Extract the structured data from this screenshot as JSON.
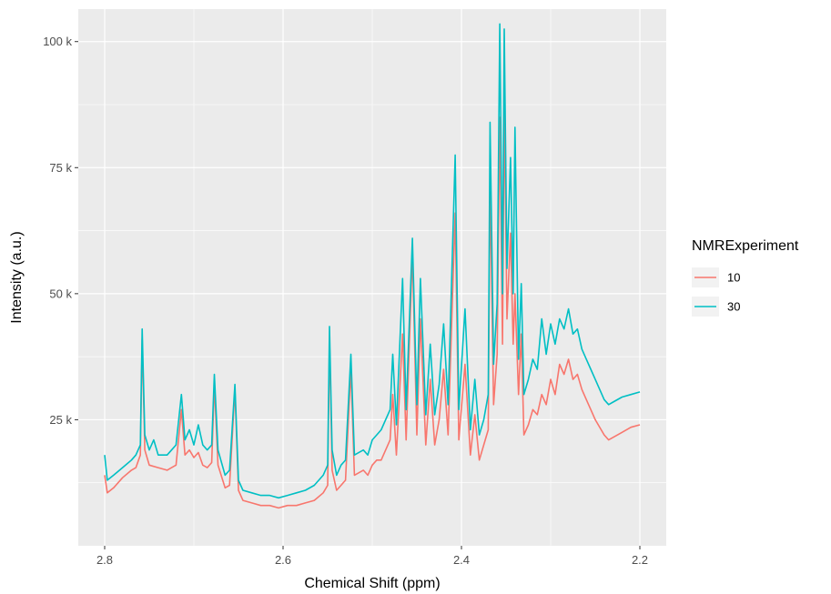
{
  "chart_data": {
    "type": "line",
    "title": "",
    "xlabel": "Chemical Shift (ppm)",
    "ylabel": "Intensity (a.u.)",
    "x_reversed": true,
    "xlim": [
      2.8,
      2.2
    ],
    "ylim": [
      0,
      105000
    ],
    "grid": true,
    "x_ticks": [
      2.8,
      2.6,
      2.4,
      2.2
    ],
    "x_tick_labels": [
      "2.8",
      "2.6",
      "2.4",
      "2.2"
    ],
    "y_ticks": [
      25000,
      50000,
      75000,
      100000
    ],
    "y_tick_labels": [
      "25 k",
      "50 k",
      "75 k",
      "100 k"
    ],
    "legend": {
      "title": "NMRExperiment",
      "placement": "right"
    },
    "series": [
      {
        "name": "10",
        "color": "#F8766D",
        "points": [
          [
            2.8,
            14000
          ],
          [
            2.797,
            10500
          ],
          [
            2.79,
            11500
          ],
          [
            2.78,
            13500
          ],
          [
            2.77,
            15000
          ],
          [
            2.765,
            15500
          ],
          [
            2.76,
            18000
          ],
          [
            2.758,
            41000
          ],
          [
            2.755,
            19000
          ],
          [
            2.75,
            16000
          ],
          [
            2.74,
            15500
          ],
          [
            2.73,
            15000
          ],
          [
            2.725,
            15500
          ],
          [
            2.72,
            16000
          ],
          [
            2.714,
            27000
          ],
          [
            2.71,
            18000
          ],
          [
            2.705,
            19000
          ],
          [
            2.7,
            17500
          ],
          [
            2.695,
            18500
          ],
          [
            2.69,
            16000
          ],
          [
            2.685,
            15500
          ],
          [
            2.68,
            16500
          ],
          [
            2.677,
            32000
          ],
          [
            2.673,
            16000
          ],
          [
            2.665,
            11500
          ],
          [
            2.66,
            12000
          ],
          [
            2.654,
            31000
          ],
          [
            2.65,
            11000
          ],
          [
            2.645,
            9000
          ],
          [
            2.635,
            8500
          ],
          [
            2.625,
            8000
          ],
          [
            2.615,
            8000
          ],
          [
            2.605,
            7500
          ],
          [
            2.595,
            8000
          ],
          [
            2.585,
            8000
          ],
          [
            2.575,
            8500
          ],
          [
            2.565,
            9000
          ],
          [
            2.555,
            10500
          ],
          [
            2.55,
            12000
          ],
          [
            2.548,
            41000
          ],
          [
            2.545,
            15000
          ],
          [
            2.54,
            11000
          ],
          [
            2.535,
            12000
          ],
          [
            2.53,
            13000
          ],
          [
            2.524,
            35000
          ],
          [
            2.52,
            14000
          ],
          [
            2.51,
            15000
          ],
          [
            2.505,
            14000
          ],
          [
            2.5,
            16000
          ],
          [
            2.495,
            17000
          ],
          [
            2.49,
            17000
          ],
          [
            2.48,
            21000
          ],
          [
            2.477,
            30000
          ],
          [
            2.473,
            18000
          ],
          [
            2.466,
            42000
          ],
          [
            2.462,
            21000
          ],
          [
            2.455,
            58000
          ],
          [
            2.45,
            22000
          ],
          [
            2.446,
            45000
          ],
          [
            2.44,
            20000
          ],
          [
            2.435,
            33000
          ],
          [
            2.43,
            20000
          ],
          [
            2.425,
            25000
          ],
          [
            2.42,
            35000
          ],
          [
            2.415,
            22000
          ],
          [
            2.407,
            66000
          ],
          [
            2.403,
            21000
          ],
          [
            2.396,
            36000
          ],
          [
            2.39,
            18000
          ],
          [
            2.385,
            26000
          ],
          [
            2.38,
            17000
          ],
          [
            2.375,
            20000
          ],
          [
            2.37,
            23000
          ],
          [
            2.368,
            72000
          ],
          [
            2.364,
            28000
          ],
          [
            2.36,
            38000
          ],
          [
            2.357,
            85000
          ],
          [
            2.354,
            40000
          ],
          [
            2.352,
            88000
          ],
          [
            2.349,
            45000
          ],
          [
            2.345,
            62000
          ],
          [
            2.342,
            40000
          ],
          [
            2.34,
            50000
          ],
          [
            2.336,
            30000
          ],
          [
            2.333,
            42000
          ],
          [
            2.33,
            22000
          ],
          [
            2.325,
            24000
          ],
          [
            2.32,
            27000
          ],
          [
            2.315,
            26000
          ],
          [
            2.31,
            30000
          ],
          [
            2.305,
            28000
          ],
          [
            2.3,
            33000
          ],
          [
            2.295,
            30000
          ],
          [
            2.29,
            36000
          ],
          [
            2.285,
            34000
          ],
          [
            2.28,
            37000
          ],
          [
            2.275,
            33000
          ],
          [
            2.27,
            34000
          ],
          [
            2.265,
            31000
          ],
          [
            2.26,
            29000
          ],
          [
            2.255,
            27000
          ],
          [
            2.25,
            25000
          ],
          [
            2.24,
            22000
          ],
          [
            2.235,
            21000
          ],
          [
            2.23,
            21500
          ],
          [
            2.22,
            22500
          ],
          [
            2.21,
            23500
          ],
          [
            2.2,
            24000
          ]
        ]
      },
      {
        "name": "30",
        "color": "#00BFC4",
        "points": [
          [
            2.8,
            18000
          ],
          [
            2.797,
            13000
          ],
          [
            2.79,
            14000
          ],
          [
            2.78,
            15500
          ],
          [
            2.77,
            17000
          ],
          [
            2.765,
            18000
          ],
          [
            2.76,
            20000
          ],
          [
            2.758,
            43000
          ],
          [
            2.755,
            22000
          ],
          [
            2.75,
            19000
          ],
          [
            2.745,
            21000
          ],
          [
            2.74,
            18000
          ],
          [
            2.73,
            18000
          ],
          [
            2.725,
            19000
          ],
          [
            2.72,
            20000
          ],
          [
            2.714,
            30000
          ],
          [
            2.71,
            21000
          ],
          [
            2.705,
            23000
          ],
          [
            2.7,
            20000
          ],
          [
            2.695,
            24000
          ],
          [
            2.69,
            20000
          ],
          [
            2.685,
            19000
          ],
          [
            2.68,
            20000
          ],
          [
            2.677,
            34000
          ],
          [
            2.673,
            19000
          ],
          [
            2.665,
            14000
          ],
          [
            2.66,
            15000
          ],
          [
            2.654,
            32000
          ],
          [
            2.65,
            13000
          ],
          [
            2.645,
            11000
          ],
          [
            2.635,
            10500
          ],
          [
            2.625,
            10000
          ],
          [
            2.615,
            10000
          ],
          [
            2.605,
            9500
          ],
          [
            2.595,
            10000
          ],
          [
            2.585,
            10500
          ],
          [
            2.575,
            11000
          ],
          [
            2.565,
            12000
          ],
          [
            2.555,
            14000
          ],
          [
            2.55,
            16000
          ],
          [
            2.548,
            43500
          ],
          [
            2.545,
            19000
          ],
          [
            2.54,
            14000
          ],
          [
            2.535,
            16000
          ],
          [
            2.53,
            17000
          ],
          [
            2.524,
            38000
          ],
          [
            2.52,
            18000
          ],
          [
            2.51,
            19000
          ],
          [
            2.505,
            18000
          ],
          [
            2.5,
            21000
          ],
          [
            2.495,
            22000
          ],
          [
            2.49,
            23000
          ],
          [
            2.48,
            27000
          ],
          [
            2.477,
            38000
          ],
          [
            2.473,
            24000
          ],
          [
            2.466,
            53000
          ],
          [
            2.462,
            27000
          ],
          [
            2.455,
            61000
          ],
          [
            2.45,
            28000
          ],
          [
            2.446,
            53000
          ],
          [
            2.44,
            26000
          ],
          [
            2.435,
            40000
          ],
          [
            2.43,
            26000
          ],
          [
            2.425,
            32000
          ],
          [
            2.42,
            44000
          ],
          [
            2.415,
            28000
          ],
          [
            2.407,
            77500
          ],
          [
            2.403,
            27000
          ],
          [
            2.396,
            47000
          ],
          [
            2.39,
            23000
          ],
          [
            2.385,
            33000
          ],
          [
            2.38,
            22000
          ],
          [
            2.375,
            25000
          ],
          [
            2.37,
            30000
          ],
          [
            2.368,
            84000
          ],
          [
            2.364,
            36000
          ],
          [
            2.36,
            48000
          ],
          [
            2.357,
            103500
          ],
          [
            2.354,
            50000
          ],
          [
            2.352,
            102500
          ],
          [
            2.349,
            55000
          ],
          [
            2.345,
            77000
          ],
          [
            2.342,
            50000
          ],
          [
            2.34,
            83000
          ],
          [
            2.336,
            37000
          ],
          [
            2.333,
            52000
          ],
          [
            2.33,
            30000
          ],
          [
            2.325,
            33000
          ],
          [
            2.32,
            37000
          ],
          [
            2.315,
            35000
          ],
          [
            2.31,
            45000
          ],
          [
            2.305,
            38000
          ],
          [
            2.3,
            44000
          ],
          [
            2.295,
            40000
          ],
          [
            2.29,
            45000
          ],
          [
            2.285,
            43000
          ],
          [
            2.28,
            47000
          ],
          [
            2.275,
            42000
          ],
          [
            2.27,
            43000
          ],
          [
            2.265,
            39000
          ],
          [
            2.26,
            37000
          ],
          [
            2.255,
            35000
          ],
          [
            2.25,
            33000
          ],
          [
            2.24,
            29000
          ],
          [
            2.235,
            28000
          ],
          [
            2.23,
            28500
          ],
          [
            2.22,
            29500
          ],
          [
            2.21,
            30000
          ],
          [
            2.2,
            30500
          ]
        ]
      }
    ]
  }
}
